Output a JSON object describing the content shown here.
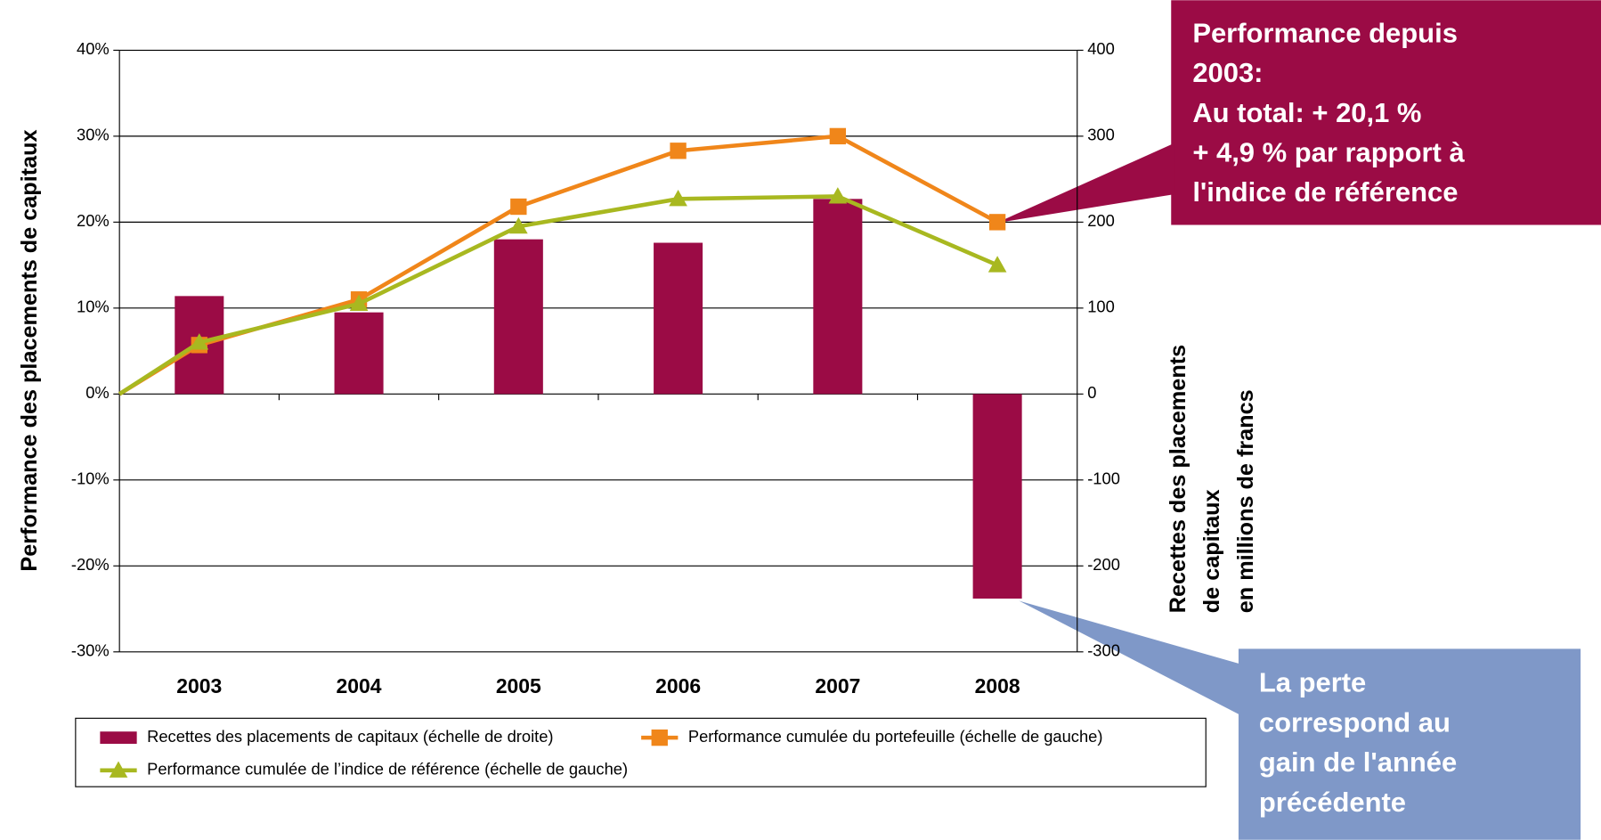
{
  "chart_data": {
    "type": "bar-line",
    "categories": [
      null,
      "2003",
      "2004",
      "2005",
      "2006",
      "2007",
      "2008"
    ],
    "series": [
      {
        "name": "Recettes des placements de capitaux (échelle de droite)",
        "color": "#9b0b45",
        "type": "bar",
        "axis": "y2",
        "values": [
          null,
          114,
          95,
          180,
          176,
          227,
          -238
        ]
      },
      {
        "name": "Performance cumulée du portefeuille (échelle de gauche)",
        "color": "#f0861a",
        "type": "line",
        "marker": "square",
        "values": [
          0,
          5.7,
          11,
          21.8,
          28.3,
          30,
          20
        ]
      },
      {
        "name": "Performance cumulée de l’indice de référence (échelle de gauche)",
        "color": "#a8b820",
        "type": "line",
        "marker": "triangle",
        "values": [
          0,
          6,
          10.5,
          19.5,
          22.7,
          23,
          15
        ]
      }
    ],
    "y_label": "Performance des placements de capitaux",
    "y2_label": [
      "Recettes des placements",
      "de capitaux",
      "en millions de francs"
    ],
    "ylim": [
      -30,
      40
    ],
    "yticks": [
      {
        "value": -30,
        "label": "-30%"
      },
      {
        "value": -20,
        "label": "-20%"
      },
      {
        "value": -10,
        "label": "-10%"
      },
      {
        "value": 0,
        "label": "0%"
      },
      {
        "value": 10,
        "label": "10%"
      },
      {
        "value": 20,
        "label": "20%"
      },
      {
        "value": 30,
        "label": "30%"
      },
      {
        "value": 40,
        "label": "40%"
      }
    ],
    "y2lim": [
      -300,
      400
    ],
    "y2ticks": [
      -300,
      -200,
      -100,
      0,
      100,
      200,
      300,
      400
    ],
    "grid": true,
    "annotations": [
      {
        "lines": [
          "Performance depuis",
          "2003:",
          "Au total: + 20,1 %",
          "+ 4,9 % par rapport à",
          "l'indice de référence"
        ],
        "color": "#9b0b45"
      },
      {
        "lines": [
          "La perte",
          "correspond au",
          "gain de l'année",
          "précédente"
        ],
        "color": "#7f98c8"
      }
    ]
  }
}
